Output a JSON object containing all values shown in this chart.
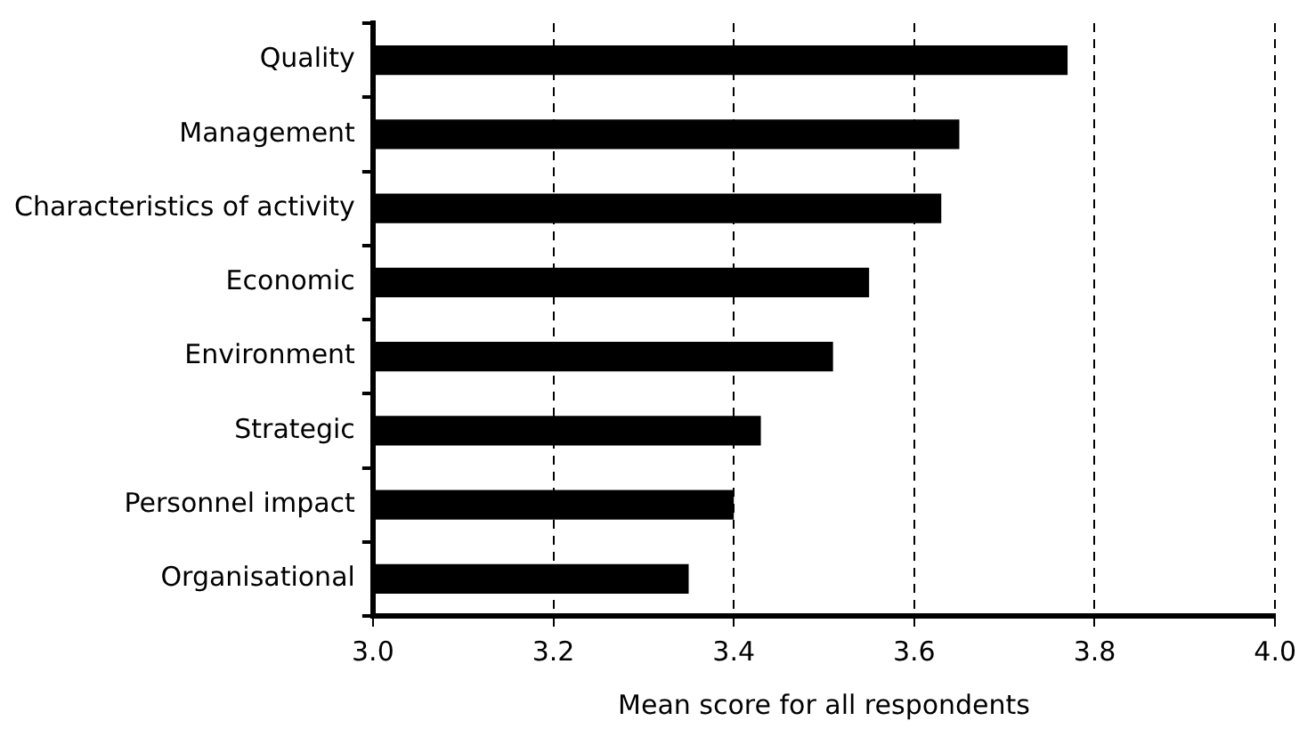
{
  "chart_data": {
    "type": "bar",
    "orientation": "horizontal",
    "xlabel": "Mean score for all respondents",
    "categories": [
      "Quality",
      "Management",
      "Characteristics of activity",
      "Economic",
      "Environment",
      "Strategic",
      "Personnel impact",
      "Organisational"
    ],
    "values": [
      3.77,
      3.65,
      3.63,
      3.55,
      3.51,
      3.43,
      3.4,
      3.35
    ],
    "color": "#000000",
    "xlim": [
      3.0,
      4.0
    ],
    "xticks": [
      {
        "value": 3.0,
        "label": "3.0"
      },
      3.2,
      3.4,
      3.6,
      3.8,
      {
        "value": 4.0,
        "label": "4.0"
      }
    ],
    "grid": "x",
    "legend": false
  }
}
